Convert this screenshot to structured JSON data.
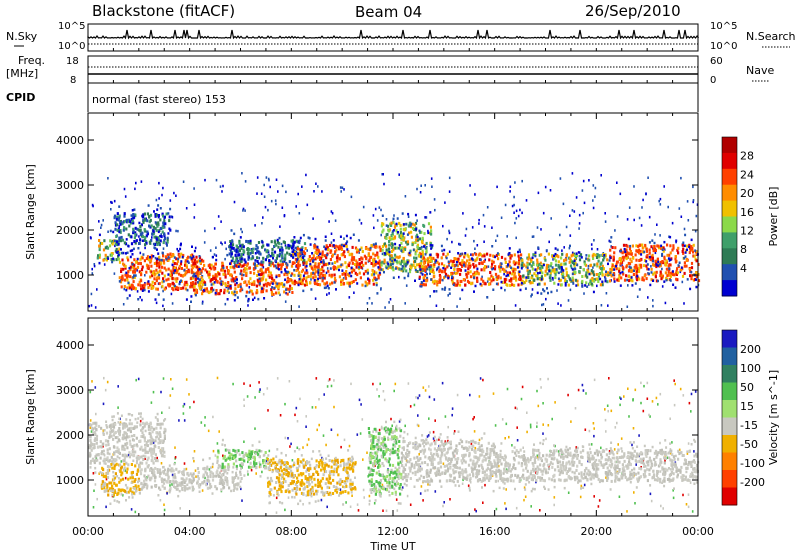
{
  "header": {
    "title": "Blackstone (fitACF)",
    "beam": "Beam 04",
    "date": "26/Sep/2010"
  },
  "top_panels": {
    "nsky_label": "N.Sky",
    "nsearch_label": "N.Search",
    "nsky_ticks": [
      "10^5",
      "10^0"
    ],
    "freq_label_1": "Freq.",
    "freq_label_2": "[MHz]",
    "freq_ticks": [
      "18",
      "8"
    ],
    "nave_ticks": [
      "60",
      "0"
    ],
    "nave_label": "Nave",
    "cpid_label": "CPID",
    "cpid_text": "normal (fast stereo) 153"
  },
  "chart_data": [
    {
      "type": "heatmap",
      "name": "Power",
      "ylabel": "Slant Range [km]",
      "ylim": [
        200,
        4600
      ],
      "yticks": [
        1000,
        2000,
        3000,
        4000
      ],
      "xlim": [
        0,
        24
      ],
      "xticks": [
        "00:00",
        "04:00",
        "08:00",
        "12:00",
        "16:00",
        "20:00",
        "00:00"
      ],
      "colorbar": {
        "label": "Power [dB]",
        "ticks": [
          4,
          8,
          12,
          16,
          20,
          24,
          28
        ],
        "colors": [
          "#0000d0",
          "#2050b0",
          "#2e7b55",
          "#3f9f6a",
          "#8bd94a",
          "#f0c000",
          "#ff8c00",
          "#ff4000",
          "#e00000",
          "#b00000"
        ]
      },
      "bands": [
        {
          "t0": 0.3,
          "t1": 1.2,
          "r0": 1350,
          "r1": 1800,
          "level": "mid"
        },
        {
          "t0": 1.0,
          "t1": 3.2,
          "r0": 1700,
          "r1": 2400,
          "level": "low"
        },
        {
          "t0": 1.2,
          "t1": 4.5,
          "r0": 700,
          "r1": 1500,
          "level": "high"
        },
        {
          "t0": 4.0,
          "t1": 8.0,
          "r0": 600,
          "r1": 1300,
          "level": "high"
        },
        {
          "t0": 5.5,
          "t1": 8.5,
          "r0": 1300,
          "r1": 1800,
          "level": "low"
        },
        {
          "t0": 8.0,
          "t1": 11.5,
          "r0": 800,
          "r1": 1700,
          "level": "high"
        },
        {
          "t0": 11.5,
          "t1": 13.5,
          "r0": 1100,
          "r1": 2200,
          "level": "mid"
        },
        {
          "t0": 13.0,
          "t1": 17.0,
          "r0": 800,
          "r1": 1500,
          "level": "high"
        },
        {
          "t0": 17.0,
          "t1": 20.5,
          "r0": 800,
          "r1": 1500,
          "level": "mid"
        },
        {
          "t0": 20.5,
          "t1": 24.0,
          "r0": 900,
          "r1": 1700,
          "level": "high"
        }
      ]
    },
    {
      "type": "heatmap",
      "name": "Velocity",
      "ylabel": "Slant Range [km]",
      "ylim": [
        200,
        4600
      ],
      "yticks": [
        1000,
        2000,
        3000,
        4000
      ],
      "xlim": [
        0,
        24
      ],
      "xticks": [
        "00:00",
        "04:00",
        "08:00",
        "12:00",
        "16:00",
        "20:00",
        "00:00"
      ],
      "xlabel": "Time UT",
      "colorbar": {
        "label": "Velocity [m s^-1]",
        "ticks": [
          200,
          100,
          50,
          15,
          -15,
          -50,
          -100,
          -200
        ],
        "colors": [
          "#1a1ac0",
          "#2060a0",
          "#308060",
          "#50c050",
          "#a0e070",
          "#c8c8c0",
          "#f0b000",
          "#ff8000",
          "#ff4000",
          "#e00000"
        ]
      },
      "bands": [
        {
          "t0": 0.0,
          "t1": 3.0,
          "r0": 1400,
          "r1": 2300,
          "level": "gray"
        },
        {
          "t0": 0.5,
          "t1": 2.0,
          "r0": 700,
          "r1": 1400,
          "level": "orange"
        },
        {
          "t0": 2.0,
          "t1": 6.0,
          "r0": 800,
          "r1": 1300,
          "level": "gray"
        },
        {
          "t0": 5.0,
          "t1": 7.0,
          "r0": 1300,
          "r1": 1700,
          "level": "green"
        },
        {
          "t0": 7.0,
          "t1": 10.5,
          "r0": 700,
          "r1": 1500,
          "level": "orange"
        },
        {
          "t0": 11.0,
          "t1": 12.3,
          "r0": 700,
          "r1": 2200,
          "level": "green"
        },
        {
          "t0": 12.3,
          "t1": 16.0,
          "r0": 1000,
          "r1": 1900,
          "level": "gray"
        },
        {
          "t0": 16.0,
          "t1": 24.0,
          "r0": 1000,
          "r1": 1700,
          "level": "gray"
        }
      ]
    }
  ]
}
